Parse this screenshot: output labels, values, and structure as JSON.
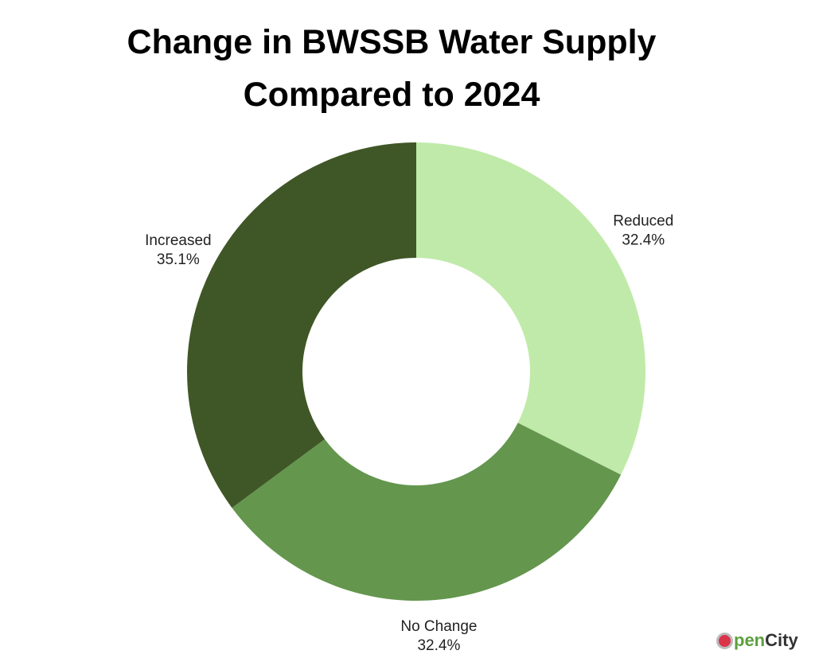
{
  "chart_data": {
    "type": "pie",
    "donut": true,
    "title_lines": [
      "Change in BWSSB Water Supply",
      "Compared to 2024"
    ],
    "slices": [
      {
        "label": "Reduced",
        "value": 32.4,
        "display": "32.4%",
        "color": "#c0eaa9"
      },
      {
        "label": "No Change",
        "value": 32.4,
        "display": "32.4%",
        "color": "#64964e"
      },
      {
        "label": "Increased",
        "value": 35.1,
        "display": "35.1%",
        "color": "#3f5726"
      }
    ]
  },
  "logo": {
    "o": "O",
    "pen": "pen",
    "city": "City"
  }
}
